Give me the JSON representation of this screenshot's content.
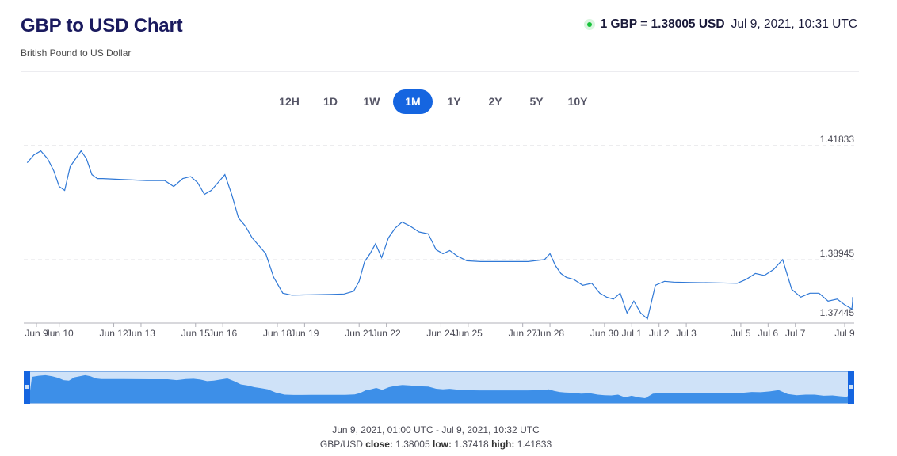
{
  "header": {
    "title": "GBP to USD Chart",
    "subtitle": "British Pound to US Dollar",
    "rate_text": "1 GBP = 1.38005 USD",
    "rate_time": "Jul 9, 2021, 10:31 UTC"
  },
  "ranges": {
    "items": [
      "12H",
      "1D",
      "1W",
      "1M",
      "1Y",
      "2Y",
      "5Y",
      "10Y"
    ],
    "selected": "1M"
  },
  "footer": {
    "period": "Jun 9, 2021, 01:00 UTC - Jul 9, 2021, 10:32 UTC",
    "pair": "GBP/USD",
    "close_label": "close:",
    "close": "1.38005",
    "low_label": "low:",
    "low": "1.37418",
    "high_label": "high:",
    "high": "1.41833"
  },
  "colors": {
    "line": "#2f78d6",
    "accent": "#1565e0",
    "navigator_fill": "#3d8fe8",
    "navigator_window": "#cfe2f8"
  },
  "chart_data": {
    "type": "line",
    "y_ticks": [
      1.41833,
      1.38945,
      1.37445
    ],
    "x_tick_labels": [
      "Jun 9",
      "Jun 10",
      "Jun 12",
      "Jun 13",
      "Jun 15",
      "Jun 16",
      "Jun 18",
      "Jun 19",
      "Jun 21",
      "Jun 22",
      "Jun 24",
      "Jun 25",
      "Jun 27",
      "Jun 28",
      "Jun 30",
      "Jul 1",
      "Jul 2",
      "Jul 3",
      "Jul 5",
      "Jul 6",
      "Jul 7",
      "Jul 9"
    ],
    "ylim": [
      1.37445,
      1.41833
    ],
    "grid": true,
    "series": [
      {
        "x": [
          "2021-06-09",
          "2021-06-09",
          "2021-06-09",
          "2021-06-09",
          "2021-06-10",
          "2021-06-10",
          "2021-06-10",
          "2021-06-10",
          "2021-06-10",
          "2021-06-11",
          "2021-06-11",
          "2021-06-11",
          "2021-06-11",
          "2021-06-11",
          "2021-06-12",
          "2021-06-13",
          "2021-06-14",
          "2021-06-14",
          "2021-06-14",
          "2021-06-15",
          "2021-06-15",
          "2021-06-15",
          "2021-06-15",
          "2021-06-16",
          "2021-06-16",
          "2021-06-16",
          "2021-06-16",
          "2021-06-17",
          "2021-06-17",
          "2021-06-17",
          "2021-06-17",
          "2021-06-18",
          "2021-06-18",
          "2021-06-18",
          "2021-06-19",
          "2021-06-20",
          "2021-06-20",
          "2021-06-21",
          "2021-06-21",
          "2021-06-21",
          "2021-06-21",
          "2021-06-21",
          "2021-06-22",
          "2021-06-22",
          "2021-06-22",
          "2021-06-22",
          "2021-06-23",
          "2021-06-23",
          "2021-06-23",
          "2021-06-24",
          "2021-06-24",
          "2021-06-24",
          "2021-06-24",
          "2021-06-25",
          "2021-06-25",
          "2021-06-26",
          "2021-06-27",
          "2021-06-28",
          "2021-06-28",
          "2021-06-28",
          "2021-06-28",
          "2021-06-28",
          "2021-06-29",
          "2021-06-29",
          "2021-06-29",
          "2021-06-30",
          "2021-06-30",
          "2021-06-30",
          "2021-06-30",
          "2021-07-01",
          "2021-07-01",
          "2021-07-01",
          "2021-07-01",
          "2021-07-02",
          "2021-07-02",
          "2021-07-02",
          "2021-07-03",
          "2021-07-04",
          "2021-07-05",
          "2021-07-05",
          "2021-07-05",
          "2021-07-06",
          "2021-07-06",
          "2021-07-06",
          "2021-07-07",
          "2021-07-07",
          "2021-07-07",
          "2021-07-08",
          "2021-07-08",
          "2021-07-08",
          "2021-07-09",
          "2021-07-09",
          "2021-07-09",
          "2021-07-09"
        ],
        "y": [
          1.414,
          1.416,
          1.417,
          1.415,
          1.412,
          1.408,
          1.407,
          1.413,
          1.415,
          1.417,
          1.415,
          1.411,
          1.41,
          1.41,
          1.4098,
          1.4095,
          1.4095,
          1.408,
          1.41,
          1.4105,
          1.409,
          1.406,
          1.407,
          1.409,
          1.411,
          1.406,
          1.4,
          1.398,
          1.395,
          1.393,
          1.391,
          1.385,
          1.381,
          1.3805,
          1.3806,
          1.3807,
          1.3808,
          1.3815,
          1.384,
          1.389,
          1.391,
          1.3935,
          1.39,
          1.395,
          1.3975,
          1.399,
          1.398,
          1.3965,
          1.396,
          1.392,
          1.391,
          1.3918,
          1.3905,
          1.3892,
          1.389,
          1.389,
          1.389,
          1.3895,
          1.391,
          1.388,
          1.386,
          1.385,
          1.3845,
          1.383,
          1.3835,
          1.381,
          1.38,
          1.3795,
          1.381,
          1.376,
          1.379,
          1.376,
          1.3745,
          1.383,
          1.384,
          1.3838,
          1.3837,
          1.3836,
          1.3835,
          1.3845,
          1.386,
          1.3855,
          1.387,
          1.3895,
          1.382,
          1.38,
          1.381,
          1.381,
          1.379,
          1.3795,
          1.378,
          1.377,
          1.379,
          1.38
        ]
      }
    ],
    "navigator": {
      "range_start": "2021-06-09",
      "range_end": "2021-07-09"
    }
  }
}
